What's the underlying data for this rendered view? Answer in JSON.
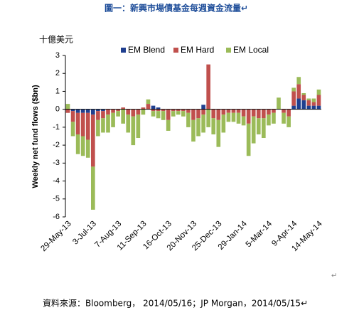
{
  "title": "圖一：新興市場債基金每週資金流量↵",
  "chart_data": {
    "type": "stacked_bar",
    "unit_label": "十億美元",
    "y_label": "Weekly net fund flows ($bn)",
    "categories": [
      "29-May-13",
      null,
      null,
      null,
      null,
      "3-Jul-13",
      null,
      null,
      null,
      null,
      "7-Aug-13",
      null,
      null,
      null,
      null,
      "11-Sep-13",
      null,
      null,
      null,
      null,
      "16-Oct-13",
      null,
      null,
      null,
      null,
      "20-Nov-13",
      null,
      null,
      null,
      null,
      "25-Dec-13",
      null,
      null,
      null,
      null,
      "29-Jan-14",
      null,
      null,
      null,
      null,
      "5-Mar-14",
      null,
      null,
      null,
      null,
      "9-Apr-14",
      null,
      null,
      null,
      null,
      "14-May-14"
    ],
    "series": [
      {
        "name": "EM Blend",
        "color": "#1f3f8f",
        "values": [
          0,
          -0.1,
          -0.2,
          -0.2,
          -0.2,
          -0.3,
          -0.1,
          -0.1,
          0,
          0,
          0,
          0,
          0,
          0,
          0,
          0,
          0,
          0.2,
          0.1,
          0,
          0,
          0,
          0,
          0,
          0,
          0,
          0,
          0.25,
          0,
          0,
          0,
          0,
          0,
          0,
          0,
          0,
          0,
          0,
          0,
          0,
          0,
          0,
          0,
          0,
          0,
          0.2,
          0.6,
          0.5,
          0.2,
          0.2,
          0.2
        ]
      },
      {
        "name": "EM Hard",
        "color": "#c0504d",
        "values": [
          -0.2,
          -0.6,
          -1.2,
          -1.3,
          -1.5,
          -2.9,
          -0.5,
          -0.4,
          -0.3,
          -0.2,
          -0.1,
          0.1,
          -0.3,
          -0.4,
          -0.3,
          0.1,
          0.3,
          -0.1,
          -0.1,
          -0.1,
          -0.6,
          -0.1,
          -0.1,
          -0.1,
          -0.2,
          -0.6,
          -0.5,
          -0.3,
          2.5,
          -0.5,
          -0.6,
          -0.3,
          -0.2,
          -0.2,
          -0.2,
          -0.4,
          -0.8,
          -0.4,
          -0.5,
          -0.5,
          -0.3,
          -0.2,
          0,
          -0.2,
          -0.4,
          0.8,
          0.8,
          0.3,
          0.3,
          0.2,
          0.6
        ]
      },
      {
        "name": "EM Local",
        "color": "#9bbb59",
        "values": [
          0.3,
          -0.8,
          -1.1,
          -1.1,
          -1.0,
          -2.4,
          -0.9,
          -0.8,
          -1.0,
          -0.8,
          -0.3,
          -0.8,
          -1.0,
          -1.6,
          -1.3,
          -0.3,
          0.25,
          -0.3,
          -0.4,
          -0.5,
          -0.6,
          -0.3,
          -0.2,
          -0.3,
          -0.8,
          -1.2,
          -1.0,
          -1.0,
          -1.0,
          -0.9,
          -1.5,
          -1.0,
          -0.5,
          -0.5,
          -0.6,
          -0.5,
          -1.8,
          -1.5,
          -0.9,
          -1.1,
          -0.6,
          -0.6,
          0.65,
          -0.6,
          -0.6,
          0.2,
          0.4,
          0.1,
          0.1,
          0.2,
          0.3
        ]
      }
    ],
    "ylim": [
      -6,
      3
    ],
    "yticks": [
      -6,
      -5,
      -4,
      -3,
      -2,
      -1,
      0,
      1,
      2,
      3
    ]
  },
  "footer": "資料來源：Bloomberg， 2014/05/16；JP Morgan，2014/05/15↵",
  "paragraph_mark": "↵"
}
